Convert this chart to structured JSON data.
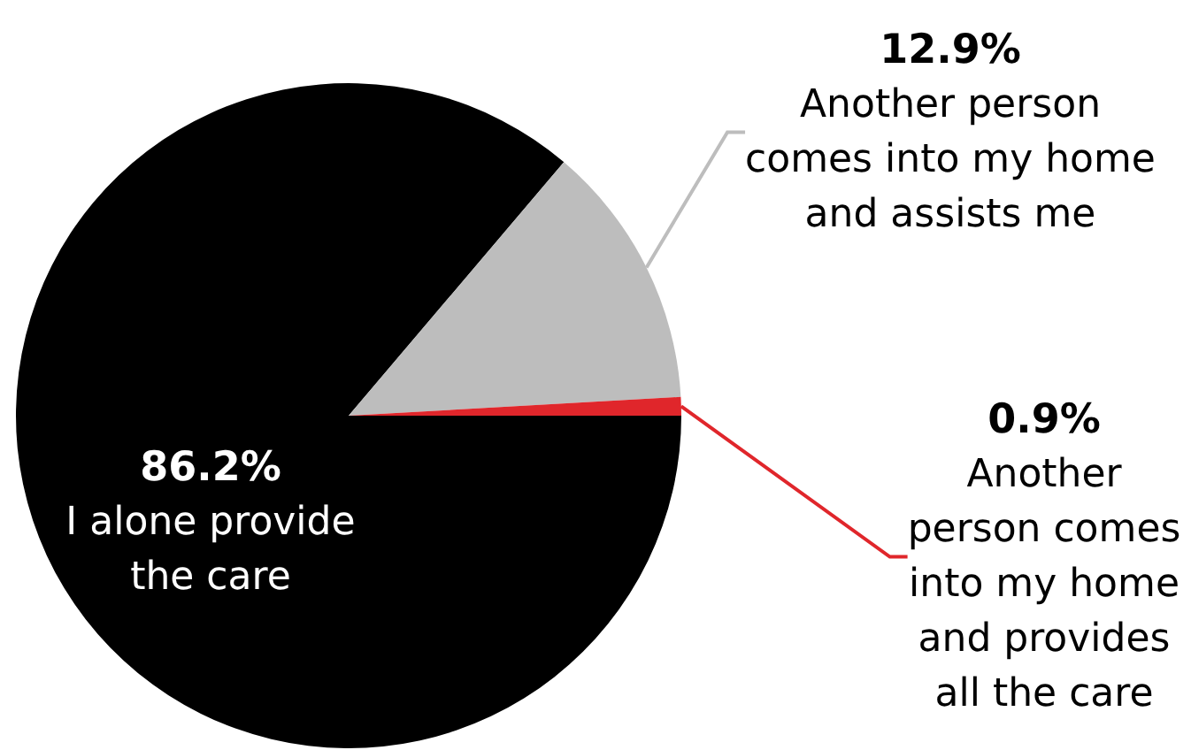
{
  "chart_data": {
    "type": "pie",
    "categories": [
      "I alone provide\nthe care",
      "Another person\ncomes into my home\nand assists me",
      "Another\nperson comes\ninto my home\nand provides\nall the care"
    ],
    "values": [
      86.2,
      12.9,
      0.9
    ],
    "colors": [
      "#000000",
      "#bdbdbd",
      "#e0262b"
    ],
    "value_labels": [
      "86.2%",
      "12.9%",
      "0.9%"
    ]
  }
}
